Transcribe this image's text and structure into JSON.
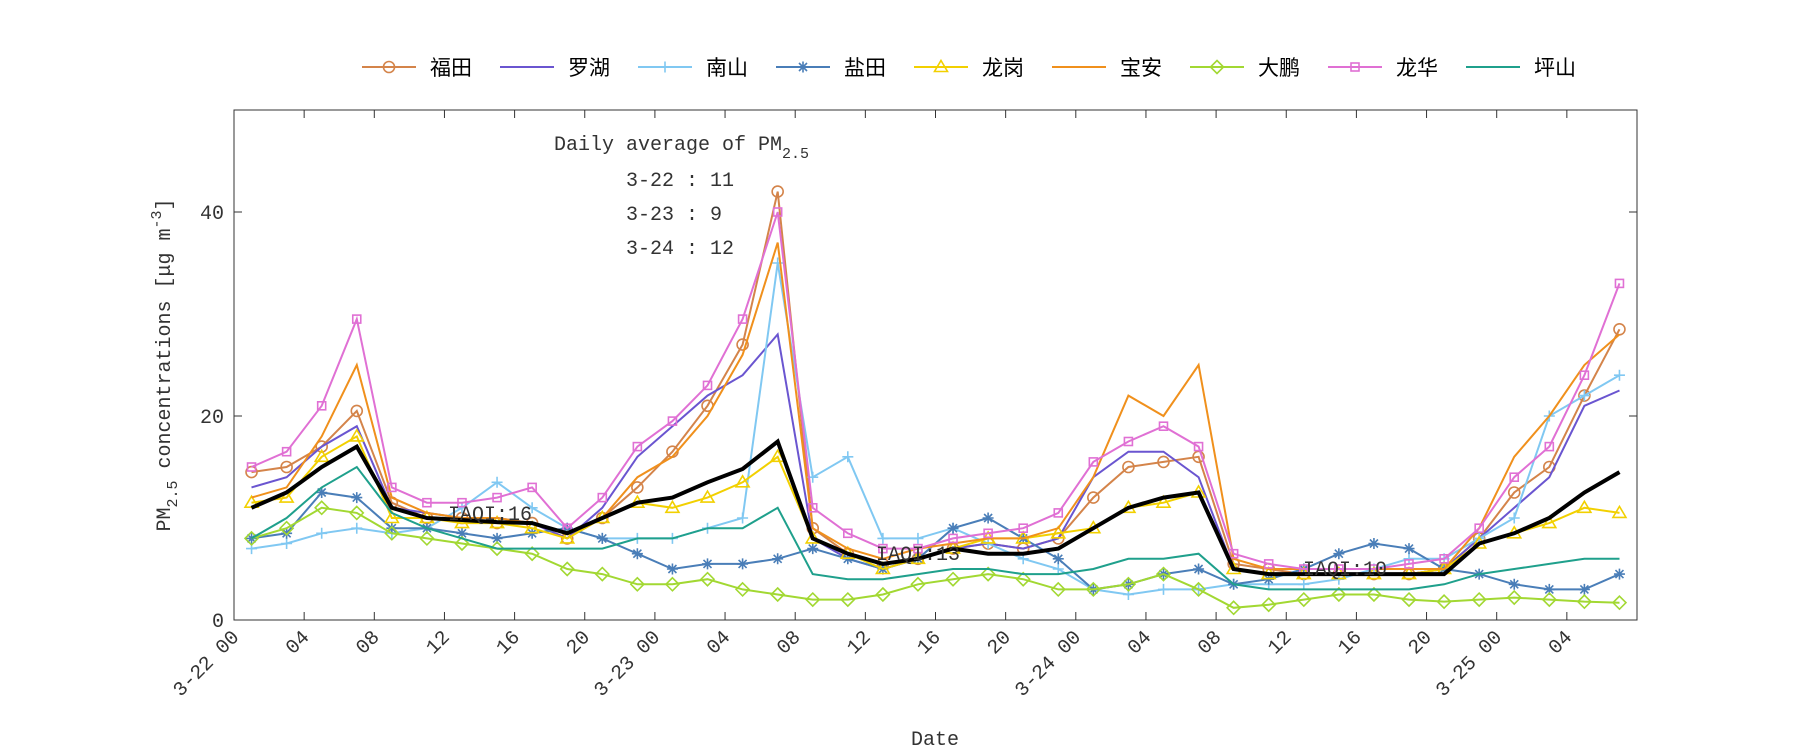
{
  "chart_data": {
    "type": "line",
    "x": [
      1,
      3,
      5,
      7,
      9,
      11,
      13,
      15,
      17,
      19,
      21,
      23,
      25,
      27,
      29,
      31,
      33,
      35,
      37,
      39,
      41,
      43,
      45,
      47,
      49,
      51,
      53,
      55,
      57,
      59,
      61,
      63,
      65,
      67,
      69,
      71,
      73,
      75,
      77,
      79
    ],
    "xlim": [
      0,
      80
    ],
    "xticks": [
      {
        "value": 0,
        "label": "3-22 00"
      },
      {
        "value": 4,
        "label": "04"
      },
      {
        "value": 8,
        "label": "08"
      },
      {
        "value": 12,
        "label": "12"
      },
      {
        "value": 16,
        "label": "16"
      },
      {
        "value": 20,
        "label": "20"
      },
      {
        "value": 24,
        "label": "3-23 00"
      },
      {
        "value": 28,
        "label": "04"
      },
      {
        "value": 32,
        "label": "08"
      },
      {
        "value": 36,
        "label": "12"
      },
      {
        "value": 40,
        "label": "16"
      },
      {
        "value": 44,
        "label": "20"
      },
      {
        "value": 48,
        "label": "3-24 00"
      },
      {
        "value": 52,
        "label": "04"
      },
      {
        "value": 56,
        "label": "08"
      },
      {
        "value": 60,
        "label": "12"
      },
      {
        "value": 64,
        "label": "16"
      },
      {
        "value": 68,
        "label": "20"
      },
      {
        "value": 72,
        "label": "3-25 00"
      },
      {
        "value": 76,
        "label": "04"
      }
    ],
    "ylim": [
      0,
      50
    ],
    "yticks": [
      0,
      20,
      40
    ],
    "x_label": "Date",
    "y_label": {
      "text": "PM",
      "sub": "2.5",
      "rest": " concentrations [μg m",
      "sup": "-3",
      "close": "]"
    },
    "series": [
      {
        "name": "福田",
        "color": "#d4844a",
        "marker": "circle",
        "values": [
          14.5,
          15,
          17,
          20.5,
          11.5,
          10,
          10,
          9.5,
          9.5,
          8,
          10,
          13,
          16.5,
          21,
          27,
          42,
          9,
          6.5,
          5.5,
          6,
          7,
          7.5,
          7,
          8,
          12,
          15,
          15.5,
          16,
          5.5,
          5,
          4.5,
          4.5,
          4.5,
          4.5,
          5,
          8,
          12.5,
          15,
          22,
          28.5
        ]
      },
      {
        "name": "罗湖",
        "color": "#6a55d0",
        "marker": "none",
        "values": [
          13,
          14,
          17,
          19,
          11,
          10.5,
          10,
          10,
          9.5,
          8,
          11,
          16,
          19,
          22,
          24,
          28,
          8,
          6,
          5,
          6,
          7,
          7.5,
          7,
          8,
          14,
          16.5,
          16.5,
          14,
          5,
          4.5,
          4.5,
          4.5,
          4.5,
          4.5,
          5,
          8,
          11,
          14,
          21,
          22.5
        ]
      },
      {
        "name": "南山",
        "color": "#80c8f2",
        "marker": "plus",
        "values": [
          7,
          7.5,
          8.5,
          9,
          8.5,
          9,
          11,
          13.5,
          11,
          9,
          8,
          8,
          8,
          9,
          10,
          35,
          14,
          16,
          8,
          8,
          9,
          7.5,
          6,
          5,
          3,
          2.5,
          3,
          3,
          3.5,
          3.5,
          3.5,
          4,
          5,
          6,
          6,
          8,
          10,
          20,
          22,
          24
        ]
      },
      {
        "name": "盐田",
        "color": "#4a7eb8",
        "marker": "star",
        "values": [
          8,
          8.5,
          12.5,
          12,
          9,
          9,
          8.5,
          8,
          8.5,
          9,
          8,
          6.5,
          5,
          5.5,
          5.5,
          6,
          7,
          6,
          5,
          6,
          9,
          10,
          8,
          6,
          3,
          3.5,
          4.5,
          5,
          3.5,
          4,
          5,
          6.5,
          7.5,
          7,
          5,
          4.5,
          3.5,
          3,
          3,
          4.5
        ]
      },
      {
        "name": "龙岗",
        "color": "#f2d000",
        "marker": "triangle",
        "values": [
          11.5,
          12,
          16,
          18,
          10,
          10,
          9.5,
          9.5,
          9,
          8,
          10,
          11.5,
          11,
          12,
          13.5,
          16,
          8,
          6.5,
          5,
          6,
          7,
          8,
          8,
          8.5,
          9,
          11,
          11.5,
          12.5,
          5,
          4.5,
          4.5,
          4.5,
          4.5,
          4.5,
          5,
          7.5,
          8.5,
          9.5,
          11,
          10.5
        ]
      },
      {
        "name": "宝安",
        "color": "#f0901c",
        "marker": "none",
        "values": [
          12,
          13,
          18,
          25,
          12,
          10.5,
          10,
          10,
          9.5,
          8.5,
          10,
          14,
          16,
          20,
          26,
          37,
          9,
          7,
          6,
          7,
          7.5,
          8,
          8,
          9,
          14,
          22,
          20,
          25,
          6,
          5,
          5,
          5,
          5,
          5,
          5,
          9,
          16,
          20,
          25,
          28
        ]
      },
      {
        "name": "大鹏",
        "color": "#a2d832",
        "marker": "diamond",
        "values": [
          8,
          9,
          11,
          10.5,
          8.5,
          8,
          7.5,
          7,
          6.5,
          5,
          4.5,
          3.5,
          3.5,
          4,
          3,
          2.5,
          2,
          2,
          2.5,
          3.5,
          4,
          4.5,
          4,
          3,
          3,
          3.5,
          4.5,
          3,
          1.2,
          1.5,
          2,
          2.5,
          2.5,
          2,
          1.8,
          2,
          2.2,
          2,
          1.8,
          1.7
        ]
      },
      {
        "name": "龙华",
        "color": "#e070d4",
        "marker": "square",
        "values": [
          15,
          16.5,
          21,
          29.5,
          13,
          11.5,
          11.5,
          12,
          13,
          9,
          12,
          17,
          19.5,
          23,
          29.5,
          40,
          11,
          8.5,
          7,
          7,
          8,
          8.5,
          9,
          10.5,
          15.5,
          17.5,
          19,
          17,
          6.5,
          5.5,
          5,
          5,
          5,
          5.5,
          6,
          9,
          14,
          17,
          24,
          33
        ]
      },
      {
        "name": "坪山",
        "color": "#1fa08c",
        "marker": "none",
        "values": [
          8,
          10,
          13,
          15,
          10.5,
          9,
          8,
          7,
          7,
          7,
          7,
          8,
          8,
          9,
          9,
          11,
          4.5,
          4,
          4,
          4.5,
          5,
          5,
          4.5,
          4.5,
          5,
          6,
          6,
          6.5,
          3.5,
          3,
          3,
          3,
          3,
          3,
          3.5,
          4.5,
          5,
          5.5,
          6,
          6
        ]
      }
    ],
    "average": {
      "color": "#000000",
      "values": [
        11,
        12.5,
        15,
        17,
        11,
        10,
        9.8,
        9.6,
        9.5,
        8.5,
        10,
        11.5,
        12,
        13.5,
        14.8,
        17.5,
        8,
        6.5,
        5.5,
        6,
        7,
        6.5,
        6.5,
        7,
        9,
        11,
        12,
        12.5,
        5,
        4.5,
        4.5,
        4.5,
        4.5,
        4.5,
        4.5,
        7.5,
        8.5,
        10,
        12.5,
        14.5
      ]
    },
    "daily_average": {
      "title": "Daily average of PM",
      "title_sub": "2.5",
      "items": [
        "3-22 : 11",
        "3-23 : 9",
        "3-24 : 12"
      ]
    },
    "iaqi_labels": [
      "IAQI:16",
      "IAQI:13",
      "IAQI:10"
    ]
  }
}
